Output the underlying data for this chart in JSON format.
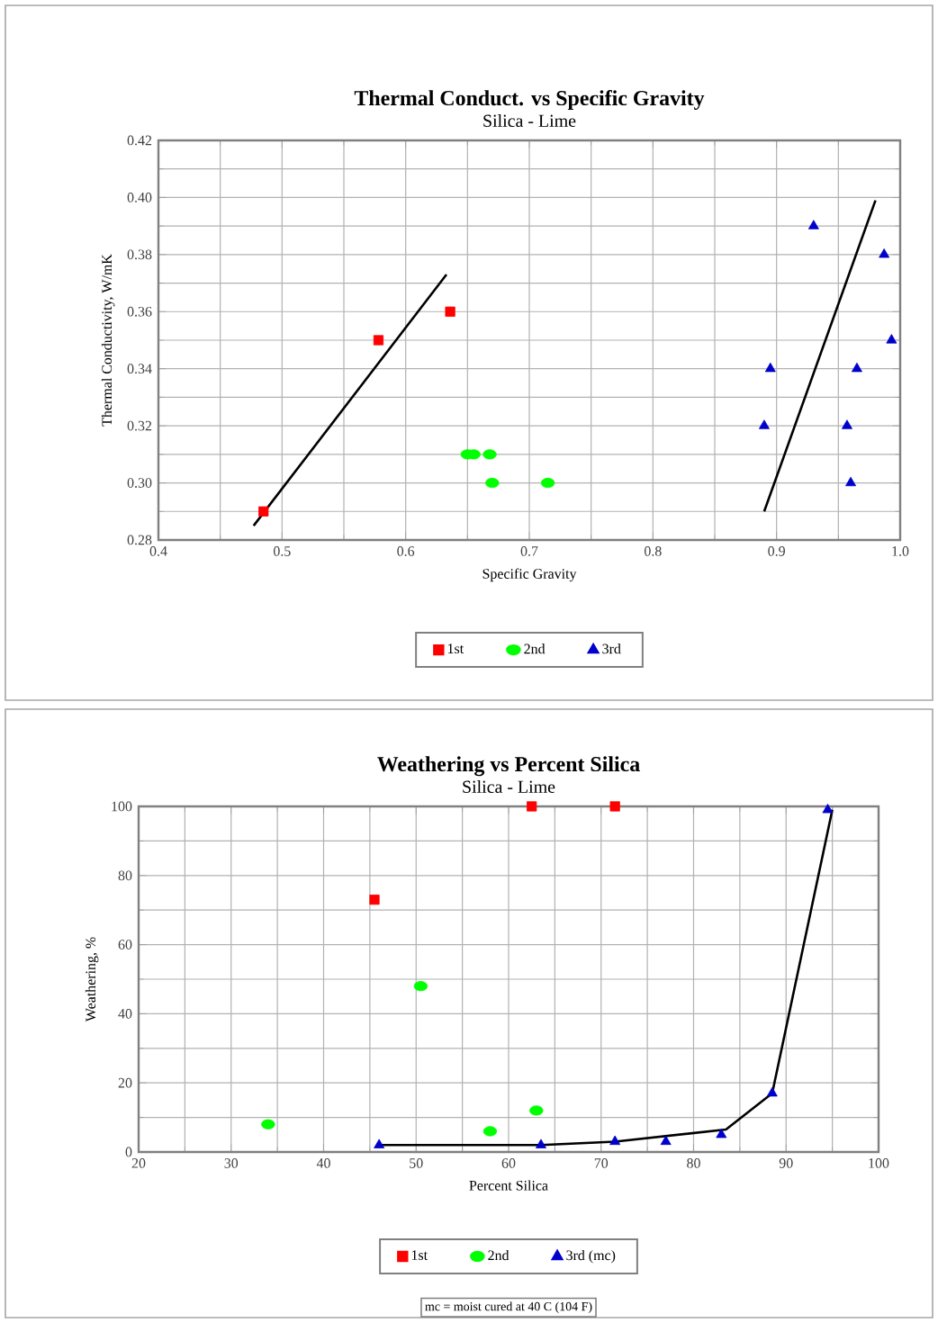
{
  "chart_data": [
    {
      "type": "scatter",
      "title": "Thermal Conduct. vs Specific Gravity",
      "subtitle": "Silica - Lime",
      "xlabel": "Specific Gravity",
      "ylabel": "Thermal Conductivity, W/mK",
      "xlim": [
        0.4,
        1.0
      ],
      "ylim": [
        0.28,
        0.42
      ],
      "xticks": [
        0.4,
        0.5,
        0.6,
        0.7,
        0.8,
        0.9,
        {
          "value": 1.0,
          "label": "1.0"
        }
      ],
      "yticks": [
        0.28,
        {
          "value": 0.3,
          "label": "0.30"
        },
        0.32,
        0.34,
        0.36,
        0.38,
        {
          "value": 0.4,
          "label": "0.40"
        },
        0.42
      ],
      "grid": true,
      "legend": "bottom",
      "series": [
        {
          "name": "1st",
          "color": "#ff0000",
          "marker": "square",
          "x": [
            0.485,
            0.578,
            0.636
          ],
          "values": [
            0.29,
            0.35,
            0.36
          ]
        },
        {
          "name": "2nd",
          "color": "#00ff00",
          "marker": "circle",
          "x": [
            0.65,
            0.655,
            0.668,
            0.67,
            0.715
          ],
          "values": [
            0.31,
            0.31,
            0.31,
            0.3,
            0.3
          ]
        },
        {
          "name": "3rd",
          "color": "#0000cc",
          "marker": "triangle",
          "x": [
            0.93,
            0.987,
            0.993,
            0.895,
            0.965,
            0.89,
            0.957,
            0.96
          ],
          "values": [
            0.39,
            0.38,
            0.35,
            0.34,
            0.34,
            0.32,
            0.32,
            0.3
          ]
        },
        {
          "type": "line",
          "color": "#000000",
          "marker": "none",
          "x": [
            0.477,
            0.633
          ],
          "values": [
            0.285,
            0.373
          ]
        },
        {
          "type": "line",
          "color": "#000000",
          "marker": "none",
          "x": [
            0.89,
            0.98
          ],
          "values": [
            0.29,
            0.399
          ]
        }
      ]
    },
    {
      "type": "scatter",
      "title": "Weathering vs Percent Silica",
      "subtitle": "Silica - Lime",
      "xlabel": "Percent Silica",
      "ylabel": "Weathering, %",
      "xlim": [
        20,
        100
      ],
      "ylim": [
        0,
        100
      ],
      "xticks": [
        20,
        30,
        40,
        50,
        60,
        70,
        80,
        90,
        100
      ],
      "yticks": [
        0,
        20,
        40,
        60,
        80,
        100
      ],
      "grid": true,
      "legend": "bottom",
      "annotations": [
        "mc = moist cured at 40 C (104 F)"
      ],
      "series": [
        {
          "name": "1st",
          "color": "#ff0000",
          "marker": "square",
          "x": [
            45.5,
            62.5,
            71.5
          ],
          "values": [
            73,
            100,
            100
          ]
        },
        {
          "name": "2nd",
          "color": "#00ff00",
          "marker": "circle",
          "x": [
            34,
            50.5,
            58,
            63
          ],
          "values": [
            8,
            48,
            6,
            12
          ]
        },
        {
          "name": "3rd (mc)",
          "color": "#0000cc",
          "marker": "triangle",
          "x": [
            46,
            63.5,
            71.5,
            77,
            83,
            88.5,
            94.5
          ],
          "values": [
            2,
            2,
            3,
            3,
            5,
            17,
            99
          ]
        },
        {
          "type": "line",
          "color": "#000000",
          "marker": "none",
          "x": [
            46,
            63.5,
            71.5,
            83.5,
            88.5,
            95
          ],
          "values": [
            2,
            2,
            3,
            6.5,
            17,
            99
          ]
        }
      ]
    }
  ]
}
